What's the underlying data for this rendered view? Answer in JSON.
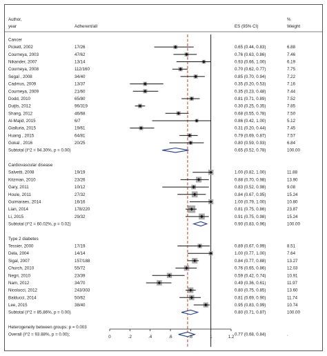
{
  "header": {
    "col1_line1": "Author,",
    "col1_line2": "year",
    "col2": "Adherent/all",
    "col_es": "ES (95% CI)",
    "col_w_line1": "%",
    "col_w_line2": "Weight"
  },
  "chart_data": {
    "type": "forest",
    "xlim": [
      0,
      1.2
    ],
    "xticks": [
      "0",
      ".2",
      ".4",
      ".6",
      ".8",
      "1",
      "1.2"
    ],
    "null_line": 1.0,
    "overall_line": 0.77,
    "groups": [
      {
        "name": "Cancer",
        "studies": [
          {
            "label": "Pickett, 2002",
            "ratio": "17/26",
            "es": 0.65,
            "lo": 0.44,
            "hi": 0.83,
            "ci": "0.65 (0.44, 0.83)",
            "weight": "6.88"
          },
          {
            "label": "Courneya, 2003",
            "ratio": "47/62",
            "es": 0.76,
            "lo": 0.63,
            "hi": 0.86,
            "ci": "0.76 (0.63, 0.86)",
            "weight": "7.46"
          },
          {
            "label": "Nikander, 2007",
            "ratio": "13/14",
            "es": 0.93,
            "lo": 0.66,
            "hi": 1.0,
            "ci": "0.93 (0.66, 1.00)",
            "weight": "6.19"
          },
          {
            "label": "Courneya, 2008",
            "ratio": "112/160",
            "es": 0.7,
            "lo": 0.62,
            "hi": 0.77,
            "ci": "0.70 (0.62, 0.77)",
            "weight": "7.75"
          },
          {
            "label": "Segal , 2008",
            "ratio": "34/40",
            "es": 0.85,
            "lo": 0.7,
            "hi": 0.94,
            "ci": "0.85 (0.70, 0.94)",
            "weight": "7.22"
          },
          {
            "label": "Cadmus, 2009",
            "ratio": "13/37",
            "es": 0.35,
            "lo": 0.2,
            "hi": 0.53,
            "ci": "0.35 (0.20, 0.53)",
            "weight": "7.16"
          },
          {
            "label": "Courneya, 2009",
            "ratio": "21/60",
            "es": 0.35,
            "lo": 0.23,
            "hi": 0.48,
            "ci": "0.35 (0.23, 0.48)",
            "weight": "7.44"
          },
          {
            "label": "Dodd, 2010",
            "ratio": "65/80",
            "es": 0.81,
            "lo": 0.71,
            "hi": 0.89,
            "ci": "0.81 (0.71, 0.89)",
            "weight": "7.52"
          },
          {
            "label": "Duijts, 2012",
            "ratio": "96/319",
            "es": 0.3,
            "lo": 0.25,
            "hi": 0.35,
            "ci": "0.30 (0.25, 0.35)",
            "weight": "7.85"
          },
          {
            "label": "Shang, 2012",
            "ratio": "46/68",
            "es": 0.68,
            "lo": 0.55,
            "hi": 0.78,
            "ci": "0.68 (0.55, 0.78)",
            "weight": "7.50"
          },
          {
            "label": "Al-Majid, 2015",
            "ratio": "6/7",
            "es": 0.86,
            "lo": 0.42,
            "hi": 1.0,
            "ci": "0.86 (0.42, 1.00)",
            "weight": "5.12"
          },
          {
            "label": "Gialluria, 2015",
            "ratio": "19/61",
            "es": 0.31,
            "lo": 0.2,
            "hi": 0.44,
            "ci": "0.31 (0.20, 0.44)",
            "weight": "7.45"
          },
          {
            "label": "Huang , 2015",
            "ratio": "64/81",
            "es": 0.79,
            "lo": 0.69,
            "hi": 0.87,
            "ci": "0.79 (0.69, 0.87)",
            "weight": "7.57"
          },
          {
            "label": "Gokal , 2016",
            "ratio": "20/25",
            "es": 0.8,
            "lo": 0.59,
            "hi": 0.93,
            "ci": "0.80 (0.59, 0.93)",
            "weight": "6.84"
          }
        ],
        "subtotal": {
          "label": "Subtotal  (I^2 = 94.30%, p = 0.00)",
          "es": 0.65,
          "lo": 0.52,
          "hi": 0.78,
          "ci": "0.65 (0.52, 0.78)",
          "weight": "100.00"
        }
      },
      {
        "name": "Cardiovascular disease",
        "studies": [
          {
            "label": "Salvetti, 2008",
            "ratio": "19/19",
            "es": 1.0,
            "lo": 0.82,
            "hi": 1.0,
            "ci": "1.00 (0.82, 1.00)",
            "weight": "11.88"
          },
          {
            "label": "Kitzman, 2010",
            "ratio": "23/26",
            "es": 0.88,
            "lo": 0.7,
            "hi": 0.98,
            "ci": "0.88 (0.70, 0.98)",
            "weight": "13.90"
          },
          {
            "label": "Gary, 2011",
            "ratio": "10/12",
            "es": 0.83,
            "lo": 0.52,
            "hi": 0.98,
            "ci": "0.83 (0.52, 0.98)",
            "weight": "9.08"
          },
          {
            "label": "Houle, 2011",
            "ratio": "27/32",
            "es": 0.84,
            "lo": 0.67,
            "hi": 0.95,
            "ci": "0.84 (0.67, 0.95)",
            "weight": "15.24"
          },
          {
            "label": "Guimaraes, 2014",
            "ratio": "16/16",
            "es": 1.0,
            "lo": 0.79,
            "hi": 1.0,
            "ci": "1.00 (0.79, 1.00)",
            "weight": "10.80"
          },
          {
            "label": "Lian, 2014",
            "ratio": "178/220",
            "es": 0.81,
            "lo": 0.75,
            "hi": 0.86,
            "ci": "0.81 (0.75, 0.86)",
            "weight": "23.87"
          },
          {
            "label": "Li, 2015",
            "ratio": "29/32",
            "es": 0.91,
            "lo": 0.75,
            "hi": 0.98,
            "ci": "0.91 (0.75, 0.98)",
            "weight": "15.24"
          }
        ],
        "subtotal": {
          "label": "Subtotal  (I^2 = 60.02%, p = 0.02)",
          "es": 0.9,
          "lo": 0.83,
          "hi": 0.96,
          "ci": "0.90 (0.83, 0.96)",
          "weight": "100.00"
        }
      },
      {
        "name": "Type 2 diabetes",
        "studies": [
          {
            "label": "Tessier, 2000",
            "ratio": "17/19",
            "es": 0.89,
            "lo": 0.67,
            "hi": 0.99,
            "ci": "0.89 (0.67, 0.99)",
            "weight": "8.51"
          },
          {
            "label": "Dela, 2004",
            "ratio": "14/14",
            "es": 1.0,
            "lo": 0.77,
            "hi": 1.0,
            "ci": "1.00 (0.77, 1.00)",
            "weight": "7.64"
          },
          {
            "label": "Sigal, 2007",
            "ratio": "157/188",
            "es": 0.84,
            "lo": 0.77,
            "hi": 0.88,
            "ci": "0.84 (0.77, 0.88)",
            "weight": "13.27"
          },
          {
            "label": "Church, 2010",
            "ratio": "55/72",
            "es": 0.76,
            "lo": 0.65,
            "hi": 0.86,
            "ci": "0.76 (0.65, 0.86)",
            "weight": "12.03"
          },
          {
            "label": "Negri, 2010",
            "ratio": "23/39",
            "es": 0.59,
            "lo": 0.42,
            "hi": 0.74,
            "ci": "0.59 (0.42, 0.74)",
            "weight": "10.91"
          },
          {
            "label": "Nam, 2012",
            "ratio": "34/70",
            "es": 0.49,
            "lo": 0.36,
            "hi": 0.61,
            "ci": "0.49 (0.36, 0.61)",
            "weight": "11.97"
          },
          {
            "label": "Nicolucci, 2012",
            "ratio": "243/303",
            "es": 0.8,
            "lo": 0.75,
            "hi": 0.85,
            "ci": "0.80 (0.75, 0.85)",
            "weight": "13.60"
          },
          {
            "label": "Balducci, 2014",
            "ratio": "50/62",
            "es": 0.81,
            "lo": 0.69,
            "hi": 0.9,
            "ci": "0.81 (0.69, 0.90)",
            "weight": "11.74"
          },
          {
            "label": "Lee, 2015",
            "ratio": "38/40",
            "es": 0.95,
            "lo": 0.83,
            "hi": 0.99,
            "ci": "0.95 (0.83, 0.99)",
            "weight": "10.74"
          }
        ],
        "subtotal": {
          "label": "Subtotal  (I^2 = 85.86%, p = 0.00)",
          "es": 0.8,
          "lo": 0.71,
          "hi": 0.87,
          "ci": "0.80 (0.71, 0.87)",
          "weight": "100.00"
        }
      }
    ],
    "heterogeneity": "Heterogeneity between groups: p = 0.003",
    "overall": {
      "label": "Overall  (I^2 = 93.88%, p = 0.00);",
      "es": 0.77,
      "lo": 0.68,
      "hi": 0.84,
      "ci": "0.77 (0.68, 0.84)",
      "weight": "."
    }
  },
  "colors": {
    "box": "#a9a9a9",
    "point": "#111111",
    "ci_line": "#111111",
    "diamond": "#1f3a8a",
    "overall_line": "#c0392b",
    "null_line": "#000000",
    "rule": "#555555"
  }
}
